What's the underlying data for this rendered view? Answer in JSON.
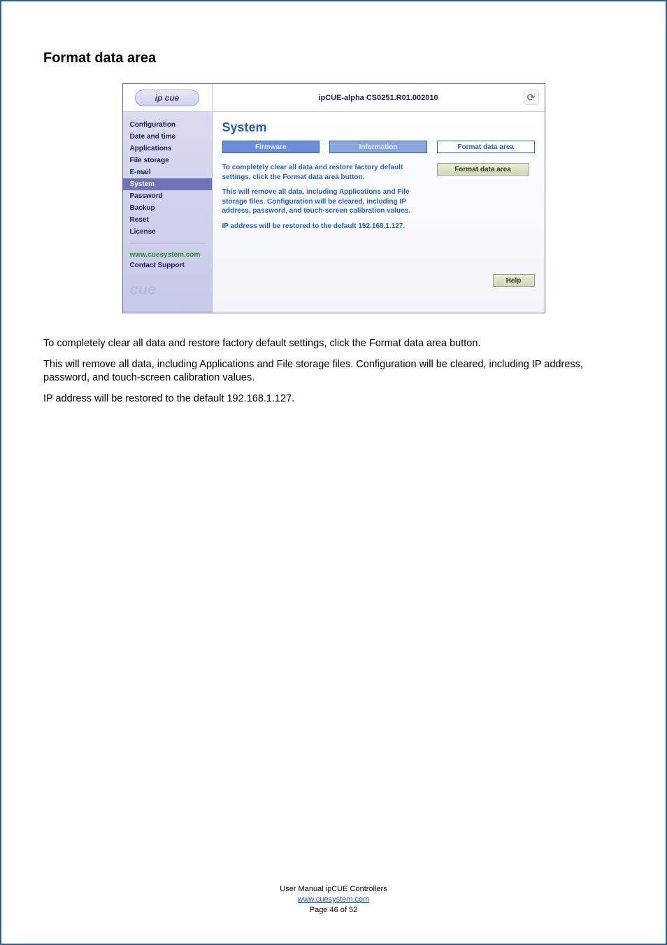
{
  "page": {
    "title": "Format data area"
  },
  "admin": {
    "logo_text": "ip cue",
    "device_title": "ipCUE-alpha  CS0251.R01.002010",
    "refresh_glyph": "⟳",
    "sidebar": {
      "items": [
        {
          "label": "Configuration"
        },
        {
          "label": "Date and time"
        },
        {
          "label": "Applications"
        },
        {
          "label": "File storage"
        },
        {
          "label": "E-mail"
        },
        {
          "label": "System"
        },
        {
          "label": "Password"
        },
        {
          "label": "Backup"
        },
        {
          "label": "Reset"
        },
        {
          "label": "License"
        }
      ],
      "link_green": "www.cuesystem.com",
      "link_blue": "Contact Support",
      "brand": "cue"
    },
    "content": {
      "heading": "System",
      "tabs": [
        {
          "label": "Firmware"
        },
        {
          "label": "Information"
        },
        {
          "label": "Format data area"
        }
      ],
      "action_button": "Format data area",
      "para1": "To completely clear all data and restore factory default settings, click the Format data area button.",
      "para2": "This will remove all data, including Applications and File storage files. Configuration will be cleared, including IP address, password, and touch-screen calibration values.",
      "para3": "IP address will be restored to the default 192.168.1.127.",
      "help_button": "Help"
    }
  },
  "body": {
    "p1": "To completely clear all data and restore factory default settings, click the Format data area button.",
    "p2": "This will remove all data, including Applications and File storage files. Configuration will be cleared, including IP address, password, and touch-screen calibration values.",
    "p3": "IP address will be restored to the default 192.168.1.127."
  },
  "footer": {
    "line1": "User Manual ipCUE Controllers",
    "link": "www.cuesystem.com",
    "line3": "Page 46 of 52"
  }
}
